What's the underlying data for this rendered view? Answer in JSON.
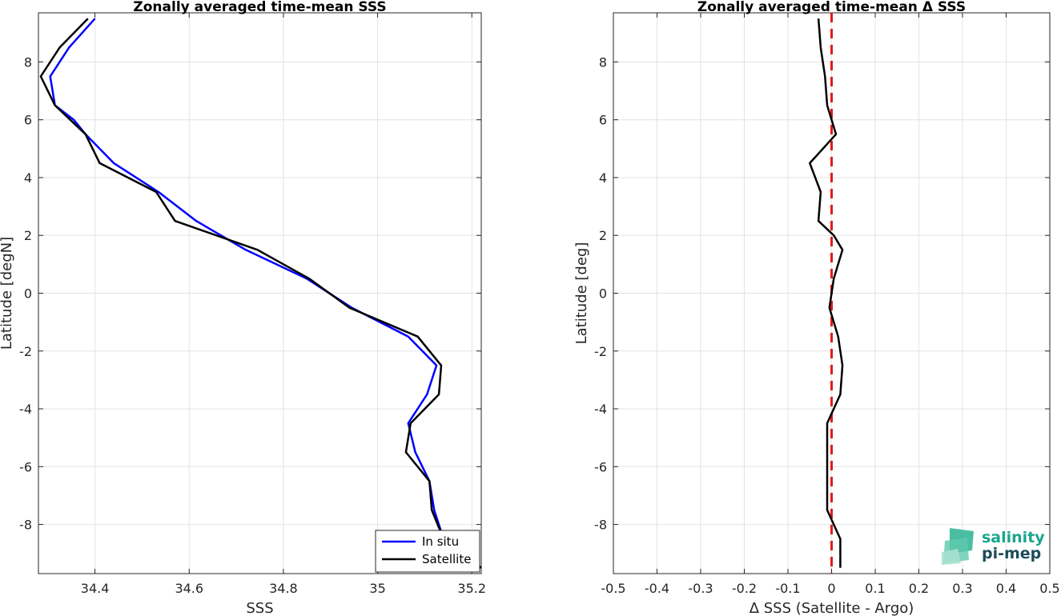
{
  "logo": {
    "line1": "salinity",
    "line2": "pi-mep"
  },
  "chart_data": [
    {
      "type": "line",
      "title": "Zonally averaged time-mean SSS",
      "xlabel": "SSS",
      "ylabel": "Latitude [degN]",
      "xlim": [
        34.28,
        35.22
      ],
      "ylim": [
        -9.7,
        9.7
      ],
      "xticks": [
        34.4,
        34.6,
        34.8,
        35,
        35.2
      ],
      "xtick_labels": [
        "34.4",
        "34.6",
        "34.8",
        "35",
        "35.2"
      ],
      "yticks": [
        -8,
        -6,
        -4,
        -2,
        0,
        2,
        4,
        6,
        8
      ],
      "ytick_labels": [
        "-8",
        "-6",
        "-4",
        "-2",
        "0",
        "2",
        "4",
        "6",
        "8"
      ],
      "grid": true,
      "legend": {
        "position": "bottom-right",
        "entries": [
          "In situ",
          "Satellite"
        ]
      },
      "series": [
        {
          "name": "In situ",
          "color": "#0000ff",
          "points": [
            [
              34.4,
              9.5
            ],
            [
              34.345,
              8.5
            ],
            [
              34.305,
              7.5
            ],
            [
              34.315,
              6.5
            ],
            [
              34.355,
              6.0
            ],
            [
              34.38,
              5.5
            ],
            [
              34.44,
              4.5
            ],
            [
              34.535,
              3.5
            ],
            [
              34.615,
              2.5
            ],
            [
              34.72,
              1.5
            ],
            [
              34.85,
              0.5
            ],
            [
              34.945,
              -0.5
            ],
            [
              35.065,
              -1.5
            ],
            [
              35.125,
              -2.5
            ],
            [
              35.105,
              -3.5
            ],
            [
              35.065,
              -4.5
            ],
            [
              35.08,
              -5.5
            ],
            [
              35.11,
              -6.5
            ],
            [
              35.12,
              -7.5
            ],
            [
              35.14,
              -8.5
            ],
            [
              35.195,
              -9.5
            ]
          ]
        },
        {
          "name": "Satellite",
          "color": "#000000",
          "points": [
            [
              34.385,
              9.5
            ],
            [
              34.325,
              8.5
            ],
            [
              34.285,
              7.5
            ],
            [
              34.315,
              6.5
            ],
            [
              34.38,
              5.5
            ],
            [
              34.41,
              4.5
            ],
            [
              34.53,
              3.5
            ],
            [
              34.57,
              2.5
            ],
            [
              34.745,
              1.5
            ],
            [
              34.855,
              0.5
            ],
            [
              34.94,
              -0.5
            ],
            [
              35.085,
              -1.5
            ],
            [
              35.135,
              -2.5
            ],
            [
              35.13,
              -3.5
            ],
            [
              35.07,
              -4.5
            ],
            [
              35.06,
              -5.5
            ],
            [
              35.11,
              -6.5
            ],
            [
              35.115,
              -7.5
            ],
            [
              35.14,
              -8.5
            ],
            [
              35.22,
              -9.5
            ]
          ]
        }
      ]
    },
    {
      "type": "line",
      "title": "Zonally averaged time-mean Δ SSS",
      "xlabel": "Δ SSS (Satellite - Argo)",
      "ylabel": "Latitude [deg]",
      "xlim": [
        -0.5,
        0.5
      ],
      "ylim": [
        -9.7,
        9.7
      ],
      "xticks": [
        -0.5,
        -0.4,
        -0.3,
        -0.2,
        -0.1,
        0,
        0.1,
        0.2,
        0.3,
        0.4,
        0.5
      ],
      "xtick_labels": [
        "-0.5",
        "-0.4",
        "-0.3",
        "-0.2",
        "-0.1",
        "0",
        "0.1",
        "0.2",
        "0.3",
        "0.4",
        "0.5"
      ],
      "yticks": [
        -8,
        -6,
        -4,
        -2,
        0,
        2,
        4,
        6,
        8
      ],
      "ytick_labels": [
        "-8",
        "-6",
        "-4",
        "-2",
        "0",
        "2",
        "4",
        "6",
        "8"
      ],
      "grid": true,
      "reference_line": {
        "x": 0,
        "color": "#e31a1c",
        "style": "dashed"
      },
      "series": [
        {
          "color": "#000000",
          "points": [
            [
              -0.03,
              9.5
            ],
            [
              -0.025,
              8.5
            ],
            [
              -0.015,
              7.5
            ],
            [
              -0.01,
              6.5
            ],
            [
              0.01,
              5.5
            ],
            [
              -0.05,
              4.5
            ],
            [
              -0.025,
              3.5
            ],
            [
              -0.03,
              2.5
            ],
            [
              0.005,
              2.0
            ],
            [
              0.025,
              1.5
            ],
            [
              0.005,
              0.5
            ],
            [
              -0.005,
              -0.5
            ],
            [
              0.015,
              -1.5
            ],
            [
              0.025,
              -2.5
            ],
            [
              0.02,
              -3.5
            ],
            [
              -0.01,
              -4.5
            ],
            [
              -0.01,
              -5.5
            ],
            [
              -0.01,
              -6.5
            ],
            [
              -0.01,
              -7.5
            ],
            [
              0.02,
              -8.5
            ],
            [
              0.02,
              -9.5
            ]
          ]
        }
      ]
    }
  ]
}
